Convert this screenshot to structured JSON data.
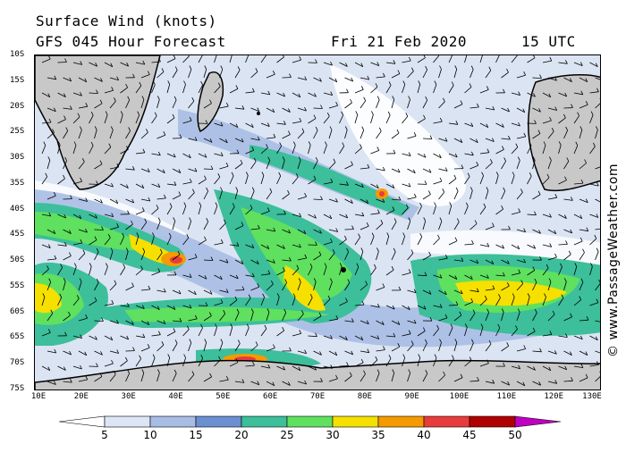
{
  "header": {
    "title": "Surface Wind (knots)",
    "forecast": "GFS 045 Hour Forecast",
    "date": "Fri 21 Feb 2020",
    "time": "15 UTC"
  },
  "copyright": "© www.PassageWeather.com",
  "map": {
    "lat_labels": [
      "10S",
      "15S",
      "20S",
      "25S",
      "30S",
      "35S",
      "40S",
      "45S",
      "50S",
      "55S",
      "60S",
      "65S",
      "70S",
      "75S"
    ],
    "lon_labels": [
      "10E",
      "20E",
      "30E",
      "40E",
      "50E",
      "60E",
      "70E",
      "80E",
      "90E",
      "100E",
      "110E",
      "120E",
      "130E"
    ],
    "lat_range": [
      -10,
      -75
    ],
    "lon_range": [
      10,
      130
    ]
  },
  "legend": {
    "labels": [
      "5",
      "10",
      "15",
      "20",
      "25",
      "30",
      "35",
      "40",
      "45",
      "50"
    ],
    "colors": [
      "#ffffff",
      "#dde6f5",
      "#a7bde4",
      "#6b8fd0",
      "#3cbf9a",
      "#5fe05f",
      "#f5e000",
      "#f59a00",
      "#e83c3c",
      "#b00000",
      "#c000c0"
    ]
  }
}
